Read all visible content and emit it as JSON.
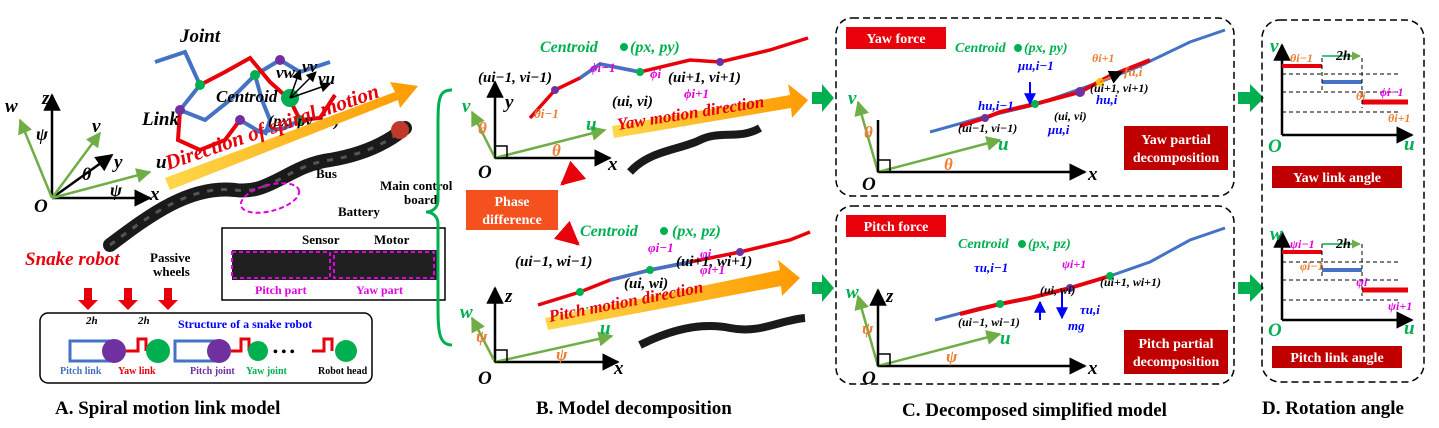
{
  "panels": {
    "a": {
      "caption": "A. Spiral motion link model",
      "joint": "Joint",
      "link": "Link",
      "centroid": "Centroid",
      "centroid_coords": "(p",
      "centroid_coords_rest": "x",
      "centroid_full": "(px, py, pz)",
      "v_w": "vw",
      "v_v": "vv",
      "v_u": "vu",
      "direction": "Direction of spiral motion",
      "snake_robot": "Snake robot",
      "passive_wheels": "Passive wheels",
      "battery": "Battery",
      "bus": "Bus",
      "main_control_board": "Main control board",
      "sensor": "Sensor",
      "motor": "Motor",
      "pitch_part": "Pitch part",
      "yaw_part": "Yaw part",
      "structure_title": "Structure of a snake robot",
      "two_h": "2h",
      "pitch_link": "Pitch link",
      "yaw_link": "Yaw link",
      "pitch_joint": "Pitch joint",
      "yaw_joint": "Yaw joint",
      "robot_head": "Robot head",
      "ellipsis": "• • •",
      "axes": {
        "z": "z",
        "w": "w",
        "v": "v",
        "u": "u",
        "y": "y",
        "x": "x",
        "o": "O",
        "psi": "ψ",
        "theta": "θ"
      }
    },
    "b": {
      "caption": "B. Model decomposition",
      "centroid_yaw": "Centroid",
      "centroid_yaw_coords": "(px, py)",
      "centroid_pitch": "Centroid",
      "centroid_pitch_coords": "(px, pz)",
      "yaw_direction": "Yaw motion direction",
      "pitch_direction": "Pitch motion direction",
      "phase_difference": "Phase difference",
      "u_prev_v": "(ui−1, vi−1)",
      "u_v": "(ui, vi)",
      "u_next_v": "(ui+1, vi+1)",
      "u_prev_w": "(ui−1, wi−1)",
      "u_w": "(ui, wi)",
      "u_next_w": "(ui+1, wi+1)",
      "phi_prev": "ϕi−1",
      "phi_i": "ϕi",
      "phi_next": "ϕi+1",
      "theta_prev": "θi−1",
      "varphi_prev": "φi−1",
      "varphi_i": "φi",
      "varphi_next": "φi+1",
      "psi_prev": "ψi−1"
    },
    "c": {
      "caption": "C. Decomposed simplified model",
      "yaw_force": "Yaw force",
      "pitch_force": "Pitch force",
      "yaw_partial": "Yaw partial decomposition",
      "pitch_partial": "Pitch partial decomposition",
      "centroid": "Centroid",
      "coords_yaw": "(px, py)",
      "coords_pitch": "(px, pz)",
      "mu_prev": "μu,i−1",
      "mu_i": "μu,i",
      "f_ui": "fu,i",
      "h_prev": "hu,i−1",
      "h_i": "hu,i",
      "tau_prev": "τu,i−1",
      "tau_i": "τu,i",
      "mg": "mg",
      "theta_next": "θi+1",
      "psi_next": "ψi+1"
    },
    "d": {
      "caption": "D. Rotation angle",
      "yaw_link_angle": "Yaw link angle",
      "pitch_link_angle": "Pitch  link angle",
      "two_h": "2h",
      "theta_prev": "θi−1",
      "theta_i": "θi",
      "theta_next": "θi+1",
      "phi_prev": "ϕi−1",
      "psi_prev": "ψi−1",
      "psi_i": "ψi",
      "psi_next": "ψi+1",
      "varphi_prev": "φi−1"
    }
  },
  "colors": {
    "red": "#e8000b",
    "darkred": "#c00000",
    "blue": "#4472c4",
    "green": "#00b050",
    "orange": "#ffc000",
    "darkorange": "#ed7d31",
    "purple": "#7030a0",
    "magenta": "#e000e0"
  }
}
